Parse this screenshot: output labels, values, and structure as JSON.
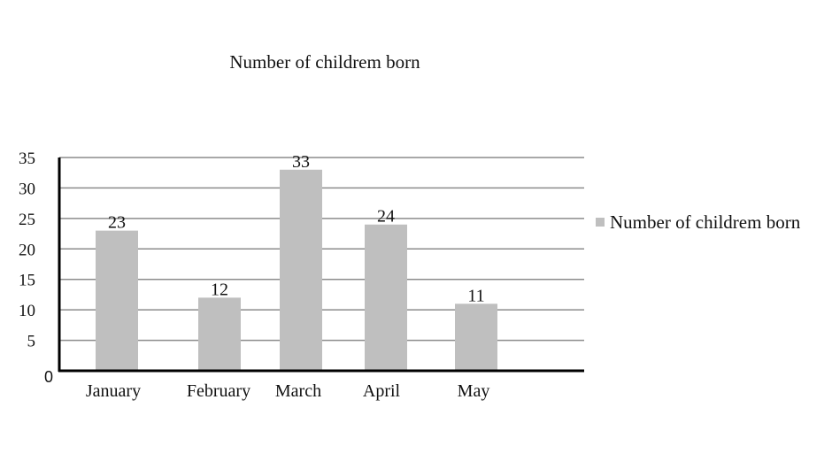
{
  "chart_data": {
    "type": "bar",
    "title": "Number of childrem born",
    "categories": [
      "January",
      "February",
      "March",
      "April",
      "May"
    ],
    "series": [
      {
        "name": "Number of childrem born",
        "values": [
          23,
          12,
          33,
          24,
          11
        ],
        "color": "#bfbfbf"
      }
    ],
    "data_labels": [
      "23",
      "12",
      "33",
      "24",
      "11"
    ],
    "y_ticks": [
      "0",
      "5",
      "10",
      "15",
      "20",
      "25",
      "30",
      "35"
    ],
    "ylim": [
      0,
      35
    ],
    "xlabel": "",
    "ylabel": "",
    "grid": true,
    "legend": "right",
    "colors": {
      "bar": "#bfbfbf",
      "grid": "#8c8c8c",
      "axis": "#000000"
    }
  }
}
